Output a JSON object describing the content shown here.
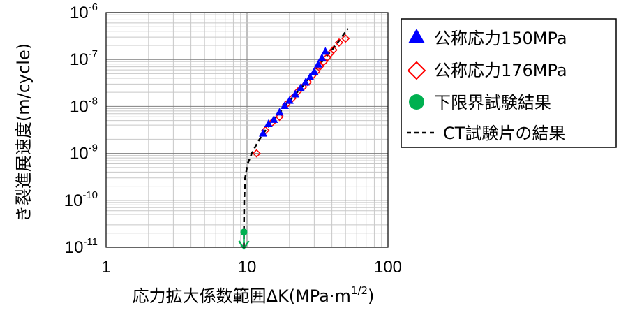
{
  "chart_data": {
    "type": "scatter",
    "xlabel": "応力拡大係数範囲ΔK(MPa·m",
    "xlabel_sup": "1/2",
    "xlabel_close": ")",
    "ylabel": "き裂進展速度(m/cycle)",
    "x_scale": "log",
    "y_scale": "log",
    "xlim": [
      1,
      100
    ],
    "ylim": [
      1e-11,
      1e-06
    ],
    "x_ticks": [
      {
        "value": 1,
        "label": "1"
      },
      {
        "value": 10,
        "label": "10"
      },
      {
        "value": 100,
        "label": "100"
      }
    ],
    "y_ticks": [
      {
        "value": 1e-06,
        "base": "10",
        "exp": "-6"
      },
      {
        "value": 1e-07,
        "base": "10",
        "exp": "-7"
      },
      {
        "value": 1e-08,
        "base": "10",
        "exp": "-8"
      },
      {
        "value": 1e-09,
        "base": "10",
        "exp": "-9"
      },
      {
        "value": 1e-10,
        "base": "10",
        "exp": "-10"
      },
      {
        "value": 1e-11,
        "base": "10",
        "exp": "-11"
      }
    ],
    "grid": true,
    "legend_position": "right",
    "series": [
      {
        "name": "公称応力150MPa",
        "marker": "filled-triangle",
        "color": "#0000ff",
        "points": [
          [
            13.0,
            2.7e-09
          ],
          [
            14.2,
            4.3e-09
          ],
          [
            15.5,
            5.3e-09
          ],
          [
            17.0,
            7.6e-09
          ],
          [
            18.5,
            1.05e-08
          ],
          [
            20.0,
            1.35e-08
          ],
          [
            22.0,
            1.85e-08
          ],
          [
            24.0,
            2.5e-08
          ],
          [
            26.0,
            3.3e-08
          ],
          [
            28.0,
            4.3e-08
          ],
          [
            30.0,
            5.6e-08
          ],
          [
            32.0,
            8e-08
          ],
          [
            34.0,
            1.1e-07
          ],
          [
            36.0,
            1.5e-07
          ]
        ]
      },
      {
        "name": "公称応力176MPa",
        "marker": "open-diamond",
        "color": "#ff0000",
        "points": [
          [
            11.7,
            1e-09
          ],
          [
            13.5,
            3.1e-09
          ],
          [
            15.0,
            4.5e-09
          ],
          [
            17.0,
            6e-09
          ],
          [
            19.0,
            1.1e-08
          ],
          [
            21.0,
            1.5e-08
          ],
          [
            23.0,
            2.1e-08
          ],
          [
            25.0,
            2.6e-08
          ],
          [
            27.0,
            3.3e-08
          ],
          [
            29.0,
            4.5e-08
          ],
          [
            31.0,
            5.6e-08
          ],
          [
            33.0,
            7.2e-08
          ],
          [
            35.0,
            8.9e-08
          ],
          [
            37.0,
            1.1e-07
          ],
          [
            39.0,
            1.35e-07
          ],
          [
            41.0,
            1.6e-07
          ],
          [
            45.0,
            2.3e-07
          ],
          [
            50.0,
            2.8e-07
          ]
        ]
      },
      {
        "name": "下限界試験結果",
        "marker": "filled-circle",
        "color": "#00b050",
        "points": [
          [
            9.5,
            2.1e-11
          ]
        ],
        "arrow": {
          "direction": "down",
          "from": 2.1e-11,
          "to": 1e-11
        }
      },
      {
        "name": "CT試験片の結果",
        "marker": "dashed-line",
        "color": "#000000",
        "points": [
          [
            9.5,
            1e-11
          ],
          [
            9.52,
            3e-11
          ],
          [
            9.55,
            1e-10
          ],
          [
            9.7,
            3e-10
          ],
          [
            10.1,
            6e-10
          ],
          [
            10.8,
            1e-09
          ],
          [
            12.0,
            1.8e-09
          ],
          [
            14.0,
            3.6e-09
          ],
          [
            17.0,
            7.3e-09
          ],
          [
            20.0,
            1.3e-08
          ],
          [
            25.0,
            2.8e-08
          ],
          [
            30.0,
            5.8e-08
          ],
          [
            35.0,
            1e-07
          ],
          [
            40.0,
            1.6e-07
          ],
          [
            45.0,
            2.5e-07
          ],
          [
            52.0,
            4.6e-07
          ]
        ]
      }
    ]
  }
}
